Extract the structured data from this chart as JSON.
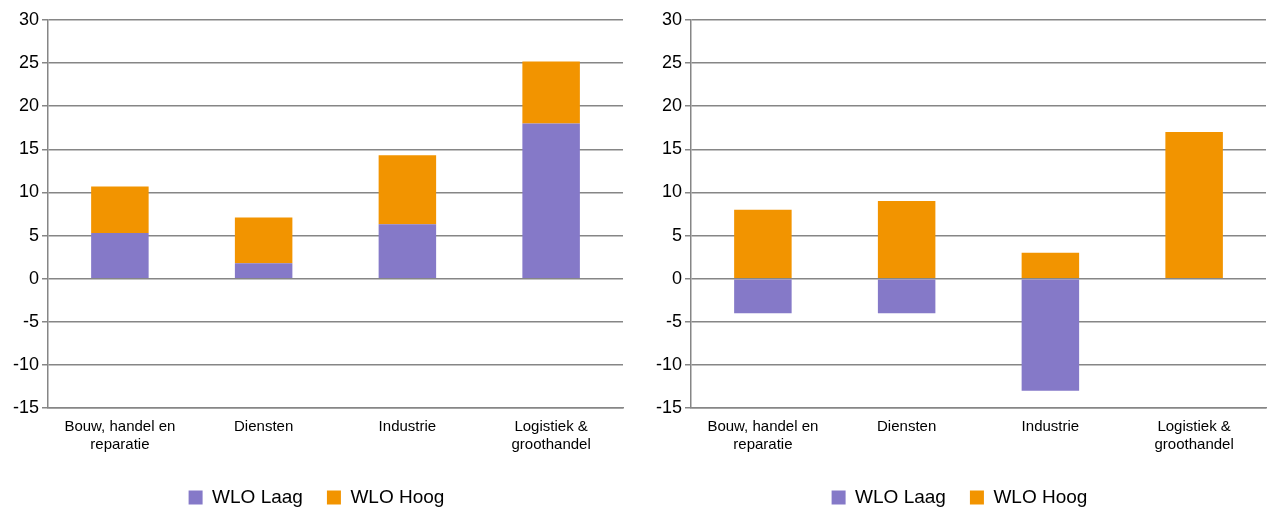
{
  "chart_data": [
    {
      "type": "bar",
      "stacked": true,
      "categories": [
        "Bouw, handel en reparatie",
        "Diensten",
        "Industrie",
        "Logistiek & groothandel"
      ],
      "series": [
        {
          "name": "WLO Laag",
          "color": "#8579c8",
          "values": [
            5.3,
            1.8,
            6.3,
            18.0
          ]
        },
        {
          "name": "WLO Hoog",
          "color": "#f29400",
          "values": [
            5.4,
            5.3,
            8.0,
            7.2
          ]
        }
      ],
      "ylim": [
        -15,
        30
      ],
      "yticks": [
        -15,
        -10,
        -5,
        0,
        5,
        10,
        15,
        20,
        25,
        30
      ],
      "grid": "y",
      "legend": "bottom"
    },
    {
      "type": "bar",
      "stacked": true,
      "categories": [
        "Bouw, handel en reparatie",
        "Diensten",
        "Industrie",
        "Logistiek & groothandel"
      ],
      "series": [
        {
          "name": "WLO Laag",
          "color": "#8579c8",
          "values": [
            -4,
            -4,
            -13,
            null
          ]
        },
        {
          "name": "WLO Hoog",
          "color": "#f29400",
          "values": [
            8,
            9,
            3,
            17
          ]
        }
      ],
      "ylim": [
        -15,
        30
      ],
      "yticks": [
        -15,
        -10,
        -5,
        0,
        5,
        10,
        15,
        20,
        25,
        30
      ],
      "grid": "y",
      "legend": "bottom"
    }
  ]
}
